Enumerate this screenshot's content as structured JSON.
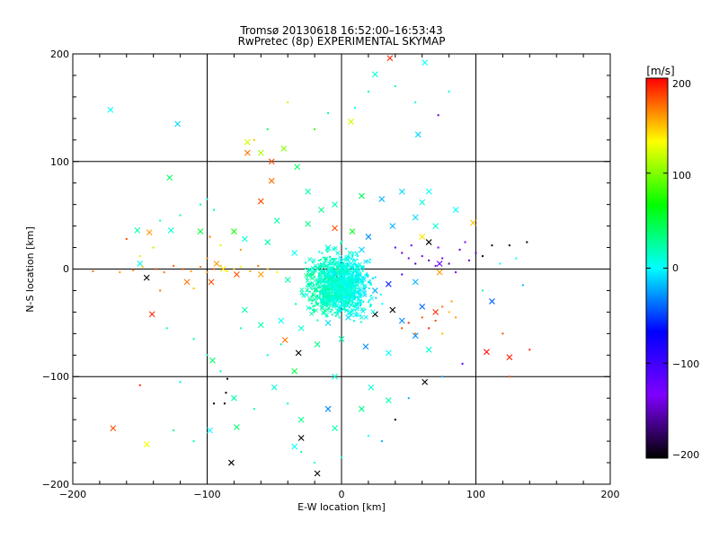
{
  "chart_data": {
    "type": "scatter",
    "title": "Tromsø 20130618 16:52:00–16:53:43",
    "subtitle": "RwPretec (8p) EXPERIMENTAL SKYMAP",
    "xlabel": "E-W location [km]",
    "ylabel": "N-S location [km]",
    "xlim": [
      -200,
      200
    ],
    "ylim": [
      -200,
      200
    ],
    "grid": true,
    "x_ticks": [
      "−200",
      "−100",
      "0",
      "100",
      "200"
    ],
    "y_ticks": [
      "−200",
      "−100",
      "0",
      "100",
      "200"
    ],
    "colorbar": {
      "label": "[m/s]",
      "min": -200,
      "max": 200,
      "ticks": [
        "200",
        "100",
        "0",
        "−100",
        "−200"
      ],
      "colormap": [
        "#000000",
        "#7f00ff",
        "#0000ff",
        "#00ffff",
        "#00ff00",
        "#ffff00",
        "#ff0000"
      ]
    },
    "series": [
      {
        "marker": "x",
        "points": [
          [
            36,
            196,
            190
          ],
          [
            62,
            192,
            0
          ],
          [
            -172,
            148,
            0
          ],
          [
            -122,
            135,
            -10
          ],
          [
            25,
            181,
            10
          ],
          [
            7,
            137,
            120
          ],
          [
            57,
            125,
            -10
          ],
          [
            -70,
            108,
            170
          ],
          [
            -60,
            108,
            110
          ],
          [
            -52,
            100,
            180
          ],
          [
            -43,
            112,
            100
          ],
          [
            -70,
            118,
            120
          ],
          [
            -52,
            82,
            170
          ],
          [
            -33,
            95,
            40
          ],
          [
            -128,
            85,
            40
          ],
          [
            -60,
            63,
            180
          ],
          [
            -25,
            72,
            20
          ],
          [
            -15,
            55,
            30
          ],
          [
            -5,
            60,
            20
          ],
          [
            15,
            68,
            40
          ],
          [
            30,
            65,
            -20
          ],
          [
            45,
            72,
            -10
          ],
          [
            60,
            62,
            10
          ],
          [
            65,
            72,
            0
          ],
          [
            -48,
            45,
            20
          ],
          [
            -25,
            42,
            30
          ],
          [
            -5,
            38,
            180
          ],
          [
            8,
            35,
            60
          ],
          [
            20,
            30,
            -30
          ],
          [
            38,
            40,
            -20
          ],
          [
            55,
            48,
            -10
          ],
          [
            70,
            40,
            10
          ],
          [
            85,
            55,
            0
          ],
          [
            -152,
            36,
            20
          ],
          [
            -143,
            34,
            160
          ],
          [
            -127,
            36,
            10
          ],
          [
            -105,
            35,
            50
          ],
          [
            -80,
            35,
            70
          ],
          [
            -72,
            28,
            10
          ],
          [
            -55,
            25,
            20
          ],
          [
            -35,
            15,
            0
          ],
          [
            -10,
            20,
            10
          ],
          [
            15,
            18,
            -10
          ],
          [
            60,
            30,
            140
          ],
          [
            65,
            25,
            -200
          ],
          [
            98,
            43,
            150
          ],
          [
            -150,
            5,
            10
          ],
          [
            -145,
            -8,
            -200
          ],
          [
            -93,
            5,
            160
          ],
          [
            -88,
            0,
            140
          ],
          [
            -115,
            -12,
            170
          ],
          [
            -97,
            -12,
            180
          ],
          [
            -78,
            -5,
            180
          ],
          [
            -60,
            -5,
            160
          ],
          [
            -40,
            -10,
            20
          ],
          [
            -5,
            -5,
            -200
          ],
          [
            10,
            -10,
            -40
          ],
          [
            25,
            -20,
            -20
          ],
          [
            35,
            -14,
            -60
          ],
          [
            55,
            -12,
            -20
          ],
          [
            73,
            -3,
            160
          ],
          [
            73,
            5,
            -120
          ],
          [
            112,
            -30,
            -40
          ],
          [
            -141,
            -42,
            190
          ],
          [
            -72,
            -38,
            20
          ],
          [
            -60,
            -52,
            20
          ],
          [
            -45,
            -48,
            0
          ],
          [
            -30,
            -55,
            10
          ],
          [
            -10,
            -50,
            -10
          ],
          [
            5,
            -45,
            -10
          ],
          [
            25,
            -42,
            -200
          ],
          [
            38,
            -38,
            -200
          ],
          [
            45,
            -48,
            -30
          ],
          [
            60,
            -35,
            -40
          ],
          [
            70,
            -40,
            190
          ],
          [
            -42,
            -66,
            170
          ],
          [
            -32,
            -78,
            -200
          ],
          [
            -18,
            -70,
            30
          ],
          [
            0,
            -65,
            20
          ],
          [
            18,
            -72,
            -30
          ],
          [
            35,
            -78,
            0
          ],
          [
            55,
            -62,
            -30
          ],
          [
            65,
            -75,
            10
          ],
          [
            108,
            -77,
            200
          ],
          [
            125,
            -82,
            190
          ],
          [
            -96,
            -85,
            40
          ],
          [
            -35,
            -95,
            50
          ],
          [
            -5,
            -100,
            10
          ],
          [
            22,
            -110,
            10
          ],
          [
            35,
            -122,
            20
          ],
          [
            62,
            -105,
            -200
          ],
          [
            -80,
            -120,
            20
          ],
          [
            -10,
            -130,
            -30
          ],
          [
            -30,
            -140,
            30
          ],
          [
            -5,
            -148,
            20
          ],
          [
            -78,
            -147,
            40
          ],
          [
            -170,
            -148,
            180
          ],
          [
            -145,
            -163,
            130
          ],
          [
            -98,
            -150,
            0
          ],
          [
            -82,
            -180,
            -200
          ],
          [
            -30,
            -157,
            -200
          ],
          [
            -18,
            -190,
            -200
          ],
          [
            -35,
            -165,
            0
          ],
          [
            -50,
            -110,
            10
          ],
          [
            15,
            -130,
            30
          ]
        ]
      },
      {
        "marker": "dot",
        "points": [
          [
            -65,
            120,
            150
          ],
          [
            -55,
            130,
            40
          ],
          [
            -40,
            155,
            120
          ],
          [
            -20,
            130,
            80
          ],
          [
            -10,
            145,
            30
          ],
          [
            10,
            150,
            0
          ],
          [
            20,
            165,
            30
          ],
          [
            40,
            170,
            20
          ],
          [
            55,
            155,
            10
          ],
          [
            80,
            165,
            10
          ],
          [
            72,
            143,
            -150
          ],
          [
            -185,
            -2,
            170
          ],
          [
            -165,
            -3,
            160
          ],
          [
            -155,
            -1,
            170
          ],
          [
            -148,
            2,
            150
          ],
          [
            -138,
            0,
            180
          ],
          [
            -132,
            -3,
            170
          ],
          [
            -125,
            3,
            175
          ],
          [
            -118,
            0,
            180
          ],
          [
            -112,
            -2,
            160
          ],
          [
            -105,
            2,
            170
          ],
          [
            -100,
            -3,
            165
          ],
          [
            -95,
            0,
            175
          ],
          [
            -90,
            3,
            150
          ],
          [
            -85,
            -2,
            140
          ],
          [
            -80,
            0,
            150
          ],
          [
            -75,
            2,
            130
          ],
          [
            -68,
            -2,
            160
          ],
          [
            -62,
            3,
            170
          ],
          [
            -55,
            0,
            150
          ],
          [
            -48,
            -3,
            130
          ],
          [
            -150,
            12,
            140
          ],
          [
            -140,
            20,
            110
          ],
          [
            -160,
            28,
            180
          ],
          [
            -98,
            30,
            170
          ],
          [
            -90,
            22,
            120
          ],
          [
            -75,
            18,
            160
          ],
          [
            -135,
            -20,
            170
          ],
          [
            -110,
            -18,
            150
          ],
          [
            -100,
            10,
            165
          ],
          [
            40,
            20,
            -110
          ],
          [
            45,
            15,
            -150
          ],
          [
            50,
            10,
            -140
          ],
          [
            55,
            5,
            -160
          ],
          [
            60,
            12,
            -130
          ],
          [
            65,
            8,
            -150
          ],
          [
            70,
            3,
            -140
          ],
          [
            75,
            10,
            -130
          ],
          [
            80,
            5,
            -160
          ],
          [
            85,
            -3,
            -140
          ],
          [
            88,
            18,
            -150
          ],
          [
            92,
            25,
            -130
          ],
          [
            95,
            8,
            -150
          ],
          [
            72,
            20,
            -135
          ],
          [
            52,
            22,
            -120
          ],
          [
            45,
            -5,
            -100
          ],
          [
            100,
            15,
            -150
          ],
          [
            105,
            12,
            -200
          ],
          [
            112,
            22,
            -200
          ],
          [
            125,
            22,
            -200
          ],
          [
            138,
            25,
            -200
          ],
          [
            118,
            5,
            0
          ],
          [
            130,
            10,
            0
          ],
          [
            135,
            -15,
            -20
          ],
          [
            105,
            -20,
            20
          ],
          [
            75,
            -35,
            170
          ],
          [
            80,
            -40,
            150
          ],
          [
            85,
            -45,
            160
          ],
          [
            70,
            -48,
            180
          ],
          [
            65,
            -55,
            190
          ],
          [
            55,
            -60,
            170
          ],
          [
            60,
            -45,
            180
          ],
          [
            82,
            -30,
            160
          ],
          [
            75,
            -60,
            150
          ],
          [
            50,
            -50,
            190
          ],
          [
            45,
            -55,
            180
          ],
          [
            120,
            -60,
            180
          ],
          [
            140,
            -75,
            190
          ],
          [
            -105,
            60,
            20
          ],
          [
            -95,
            55,
            30
          ],
          [
            -120,
            50,
            20
          ],
          [
            -135,
            45,
            10
          ],
          [
            -100,
            65,
            10
          ],
          [
            -130,
            -55,
            20
          ],
          [
            -110,
            -65,
            30
          ],
          [
            -100,
            -80,
            20
          ],
          [
            -90,
            -95,
            20
          ],
          [
            -85,
            -102,
            -200
          ],
          [
            -86,
            -115,
            -200
          ],
          [
            -87,
            -125,
            -200
          ],
          [
            -95,
            -125,
            -200
          ],
          [
            -110,
            -160,
            20
          ],
          [
            -125,
            -150,
            30
          ],
          [
            -150,
            -108,
            190
          ],
          [
            -120,
            -105,
            10
          ],
          [
            -30,
            -170,
            20
          ],
          [
            -20,
            -180,
            10
          ],
          [
            -40,
            -125,
            10
          ],
          [
            0,
            -175,
            10
          ],
          [
            20,
            -155,
            0
          ],
          [
            40,
            -140,
            -200
          ],
          [
            30,
            -160,
            -20
          ],
          [
            50,
            -120,
            -20
          ],
          [
            75,
            -100,
            -20
          ],
          [
            90,
            -88,
            -110
          ],
          [
            125,
            -100,
            180
          ],
          [
            -65,
            -130,
            20
          ],
          [
            -55,
            -80,
            10
          ],
          [
            -45,
            -70,
            30
          ],
          [
            -75,
            -55,
            10
          ]
        ]
      }
    ]
  }
}
